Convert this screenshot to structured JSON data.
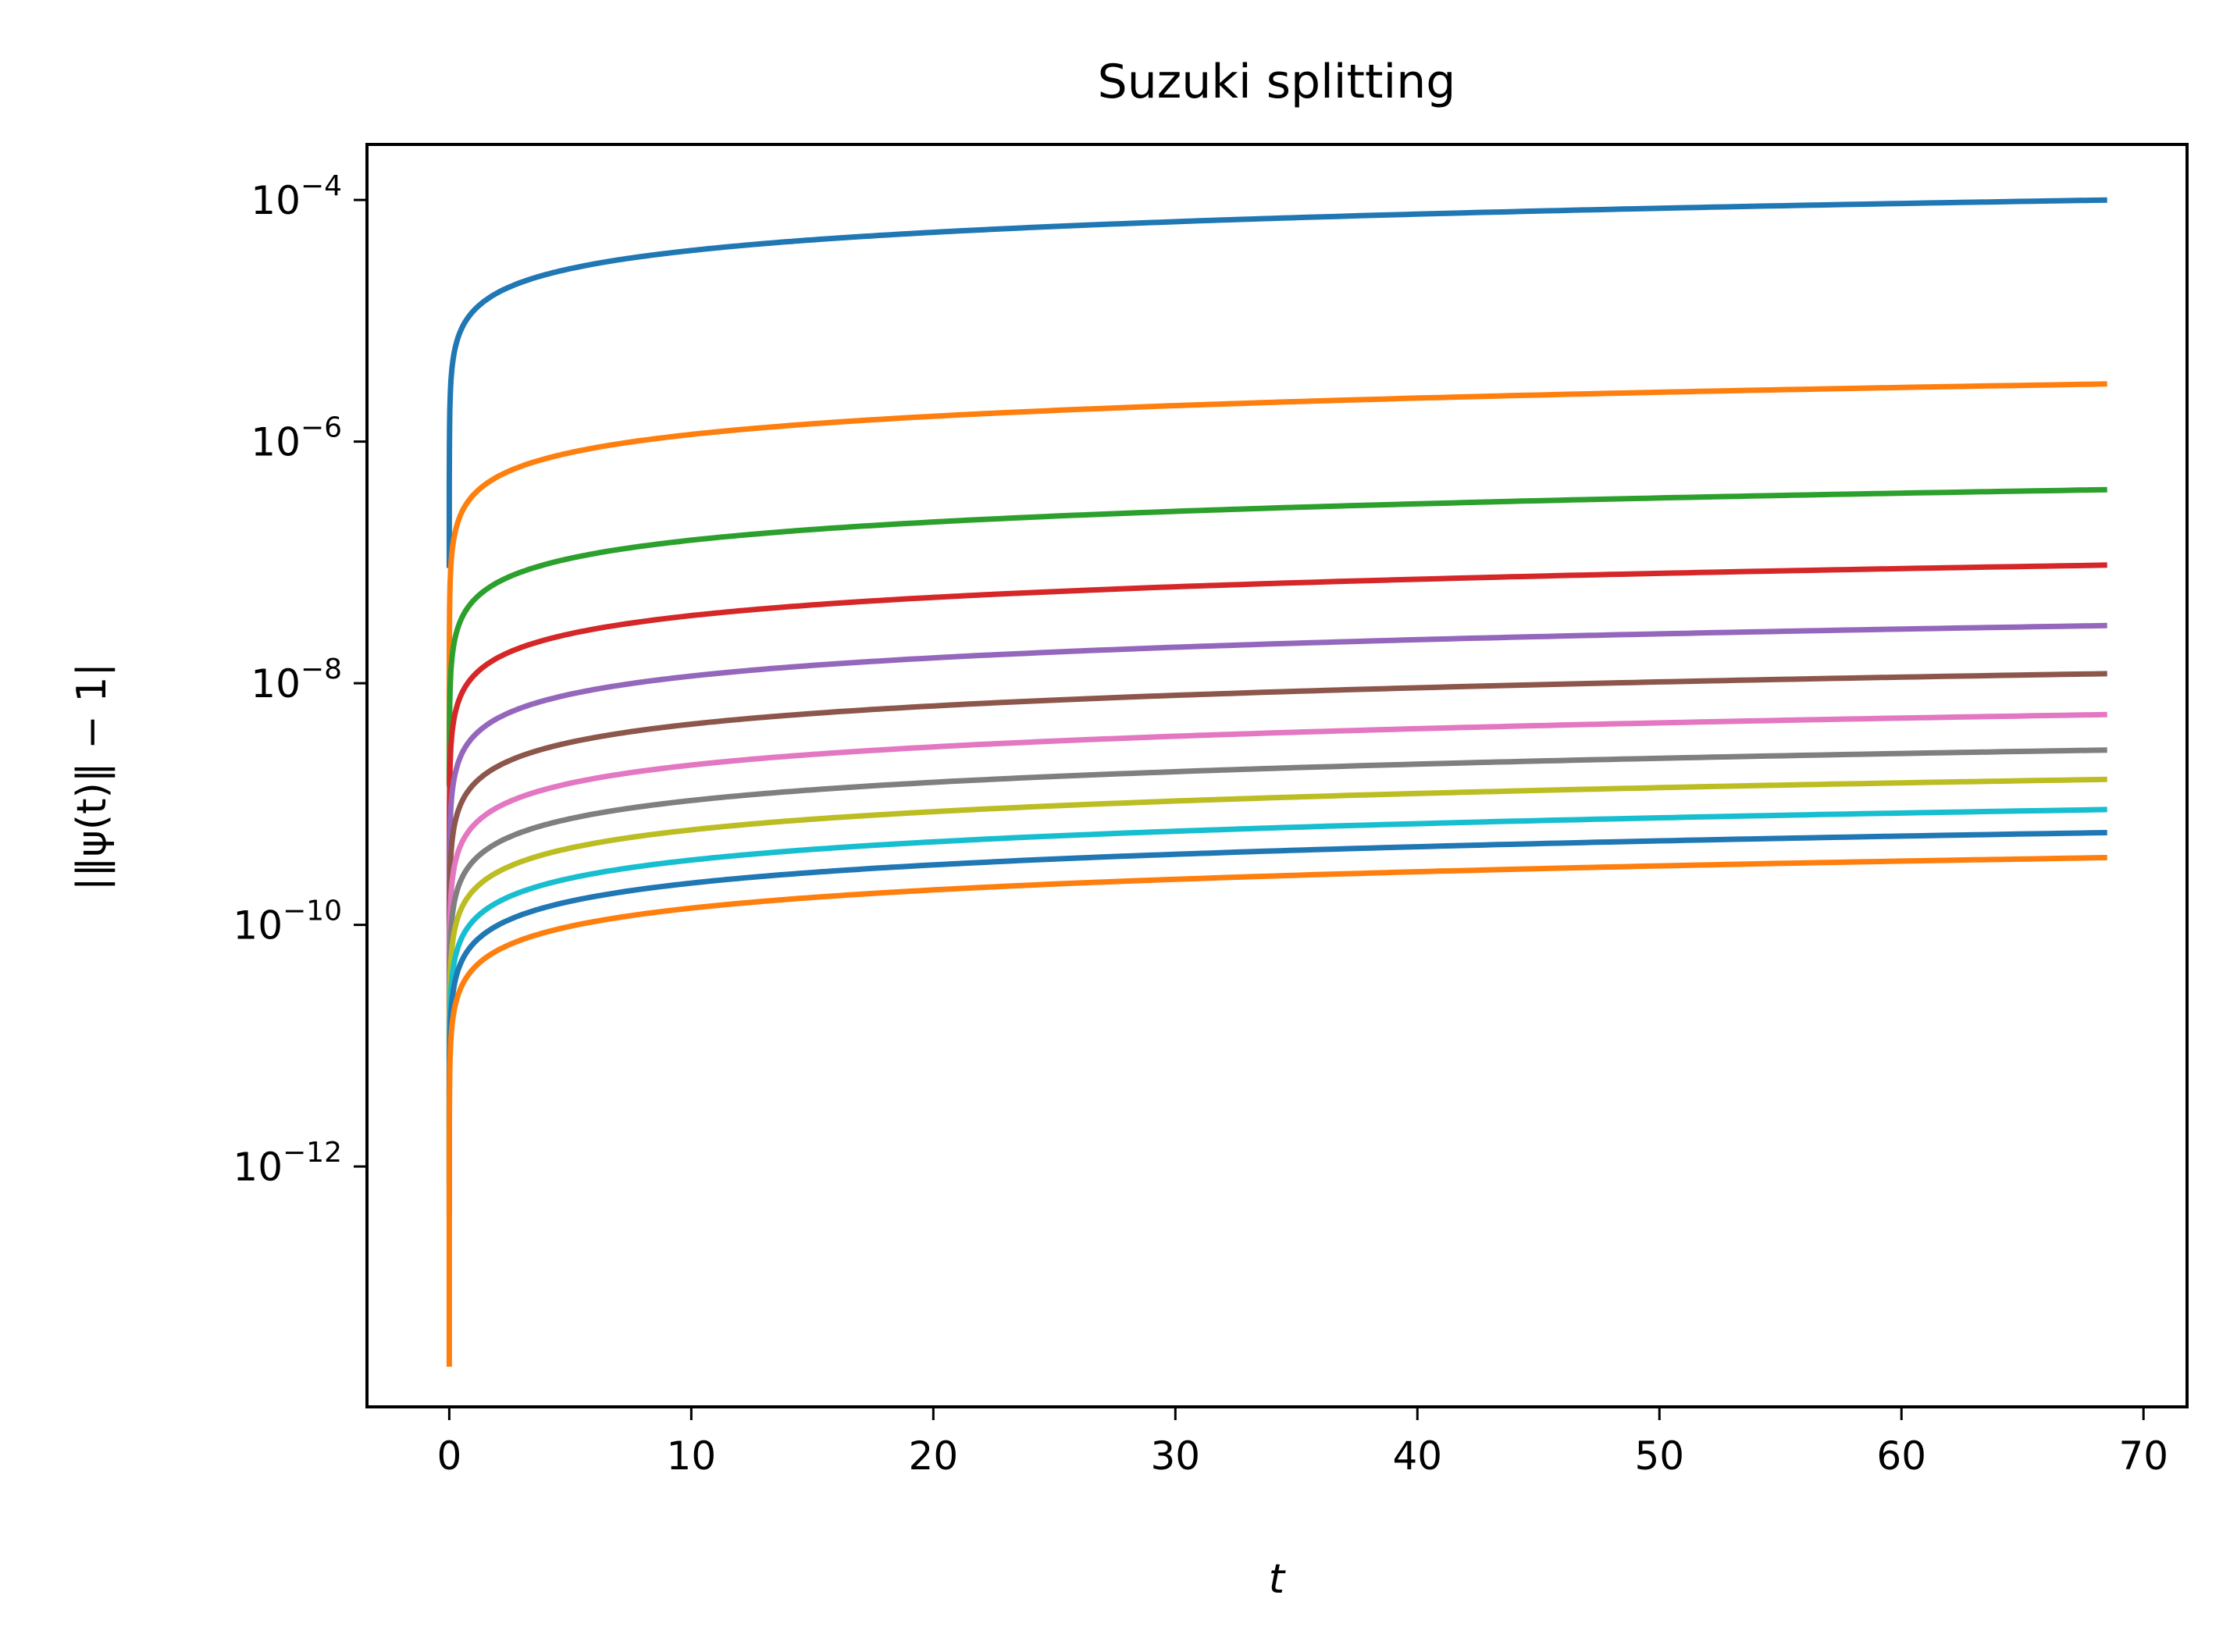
{
  "chart_data": {
    "type": "line",
    "title": "Suzuki splitting",
    "xlabel": "t",
    "ylabel": "|‖ψ(t)‖ − 1|",
    "xscale": "linear",
    "yscale": "log",
    "xlim": [
      -3.4,
      71.8
    ],
    "ylim_log10": [
      -13.99,
      -3.54
    ],
    "xticks": [
      0,
      10,
      20,
      30,
      40,
      50,
      60,
      70
    ],
    "xtick_labels": [
      "0",
      "10",
      "20",
      "30",
      "40",
      "50",
      "60",
      "70"
    ],
    "yticks_log10": [
      -4,
      -6,
      -8,
      -10,
      -12
    ],
    "ytick_labels": [
      {
        "base": "10",
        "exp": "−4"
      },
      {
        "base": "10",
        "exp": "−6"
      },
      {
        "base": "10",
        "exp": "−8"
      },
      {
        "base": "10",
        "exp": "−10"
      },
      {
        "base": "10",
        "exp": "−12"
      }
    ],
    "grid": false,
    "legend": "none",
    "x_start": 0,
    "x_end": 68.5,
    "series": [
      {
        "color": "#1f77b4",
        "y_end": 0.0001,
        "y_start": 9e-08
      },
      {
        "color": "#ff7f0e",
        "y_end": 3e-06,
        "y_start": 1.5e-09
      },
      {
        "color": "#2ca02c",
        "y_end": 4e-07,
        "y_start": 1.4e-09
      },
      {
        "color": "#d62728",
        "y_end": 9.5e-08,
        "y_start": 1e-10
      },
      {
        "color": "#9467bd",
        "y_end": 3e-08,
        "y_start": 2e-11
      },
      {
        "color": "#8c564b",
        "y_end": 1.2e-08,
        "y_start": 8e-12
      },
      {
        "color": "#e377c2",
        "y_end": 5.5e-09,
        "y_start": 4e-12
      },
      {
        "color": "#7f7f7f",
        "y_end": 2.8e-09,
        "y_start": 2e-12
      },
      {
        "color": "#bcbd22",
        "y_end": 1.6e-09,
        "y_start": 1.2e-12
      },
      {
        "color": "#17becf",
        "y_end": 9e-10,
        "y_start": 7e-13
      },
      {
        "color": "#1f77b4",
        "y_end": 5.8e-10,
        "y_start": 4e-13
      },
      {
        "color": "#ff7f0e",
        "y_end": 3.6e-10,
        "y_start": 2.2e-14
      }
    ]
  }
}
